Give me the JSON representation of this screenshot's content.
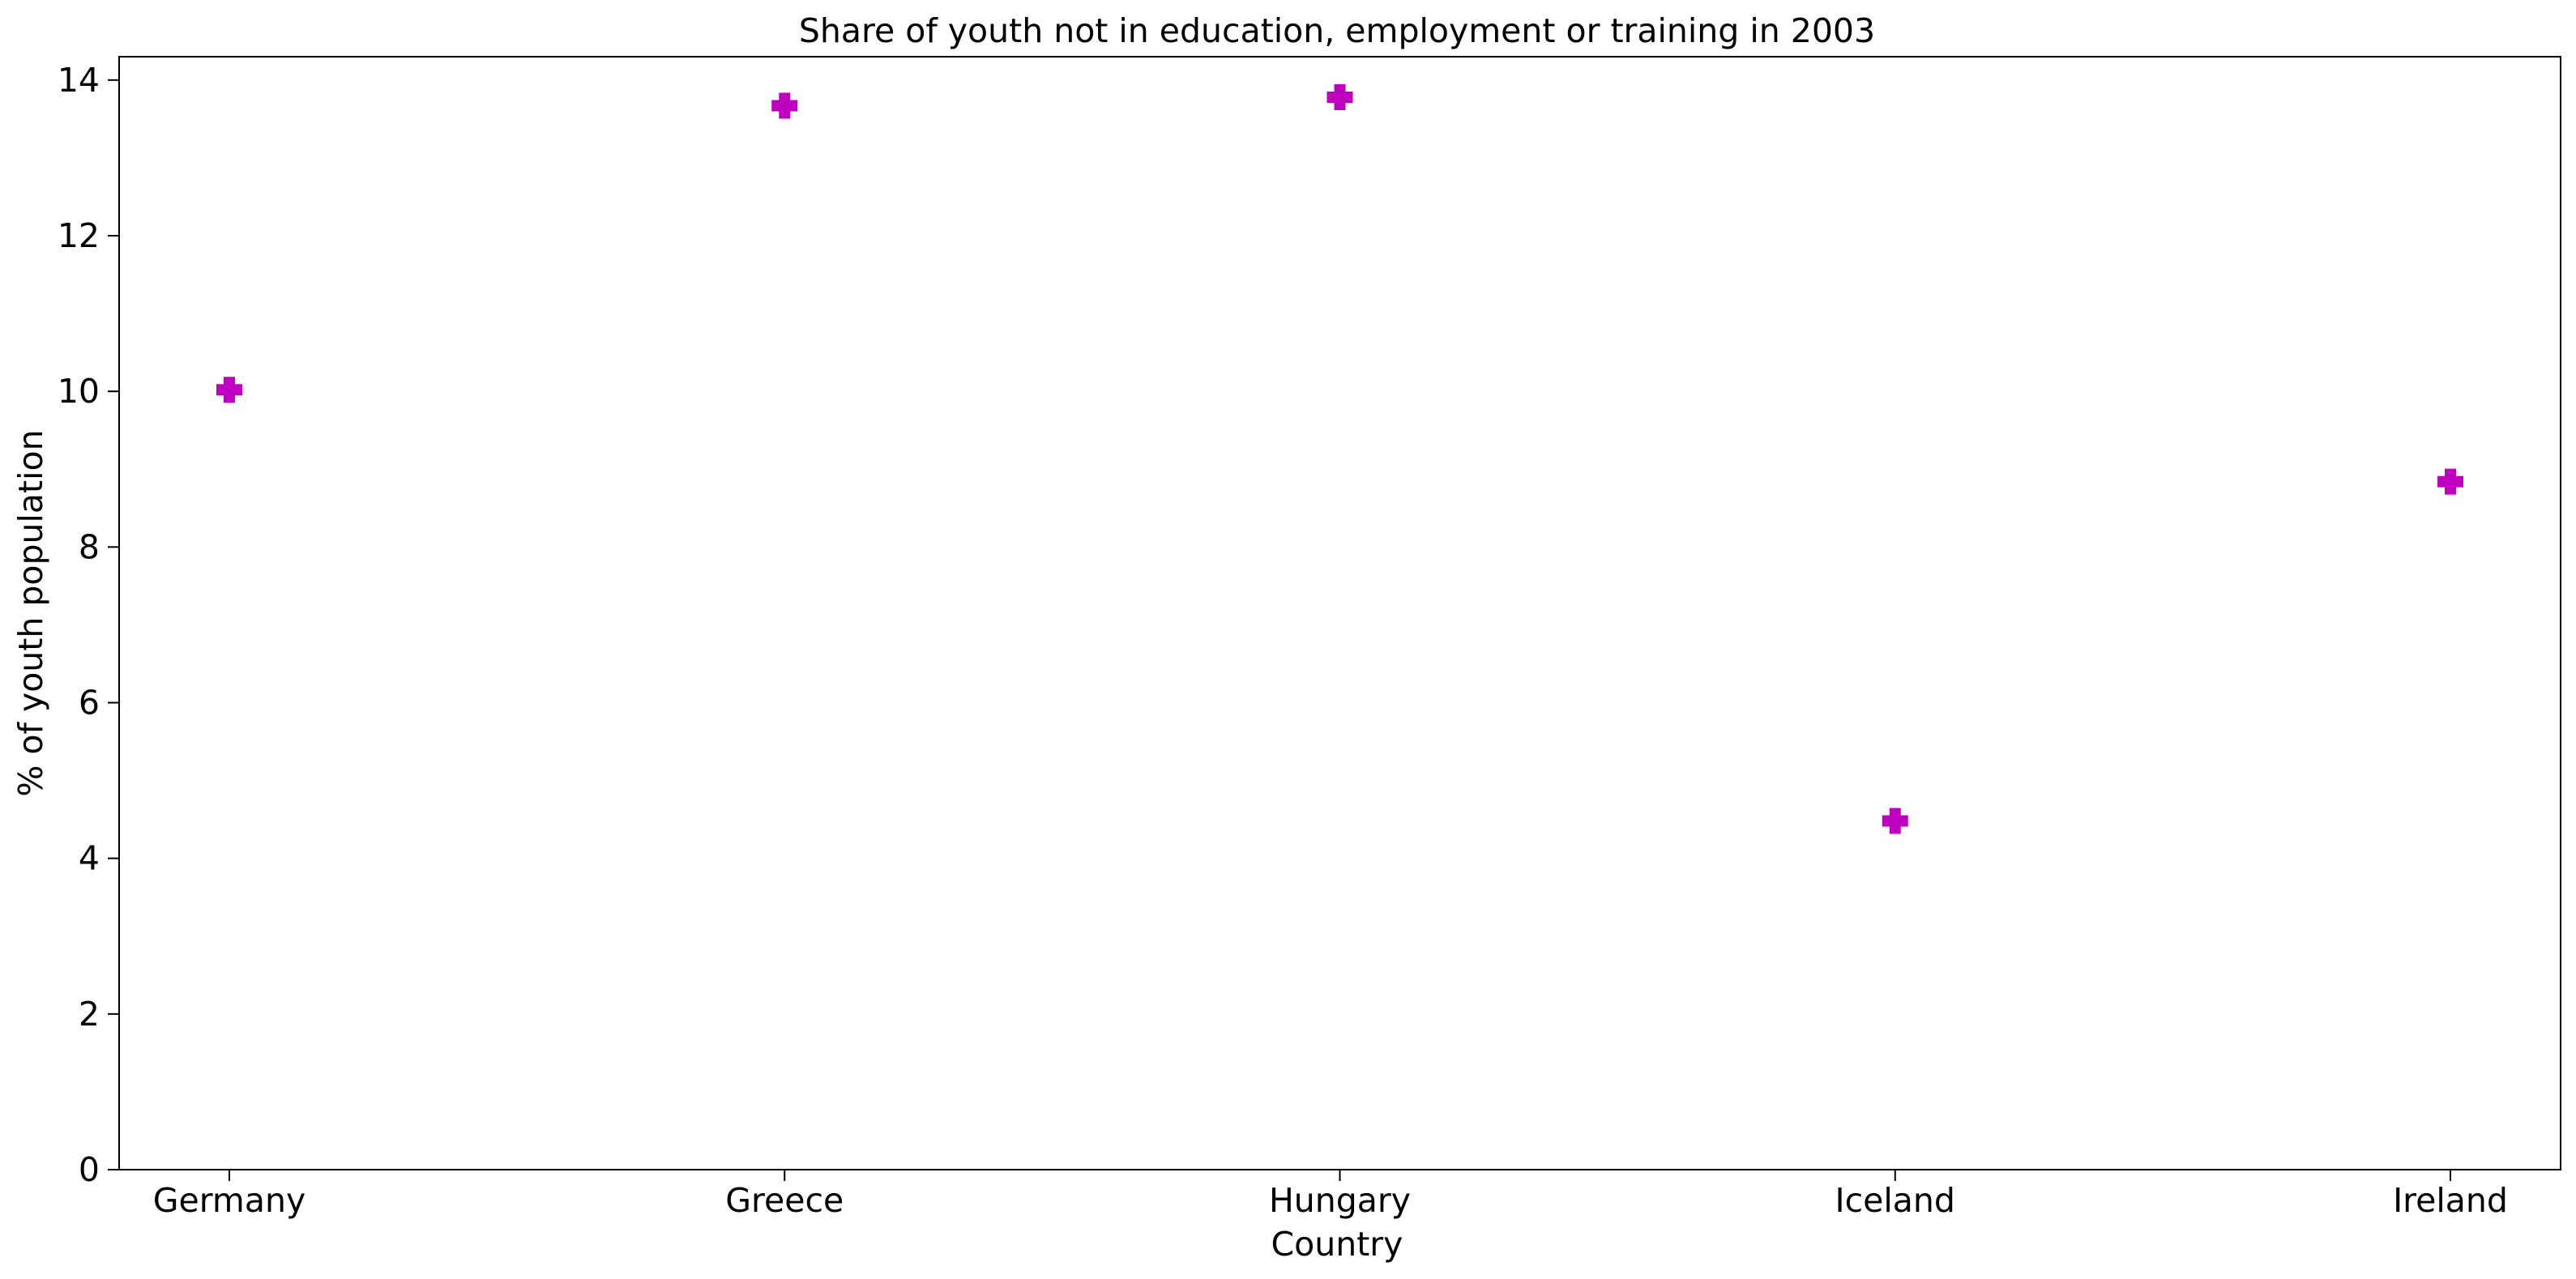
{
  "chart_data": {
    "type": "scatter",
    "title": "Share of youth not in education, employment or training in 2003",
    "xlabel": "Country",
    "ylabel": "% of youth population",
    "categories": [
      "Germany",
      "Greece",
      "Hungary",
      "Iceland",
      "Ireland"
    ],
    "series": [
      {
        "values": [
          10.02,
          13.67,
          13.78,
          4.48,
          8.84
        ],
        "marker": "plus-filled",
        "color": "#c000c0"
      }
    ],
    "ylim": [
      0,
      14.3
    ],
    "yticks": [
      0,
      2,
      4,
      6,
      8,
      10,
      12,
      14
    ],
    "grid": false,
    "legend": false
  }
}
